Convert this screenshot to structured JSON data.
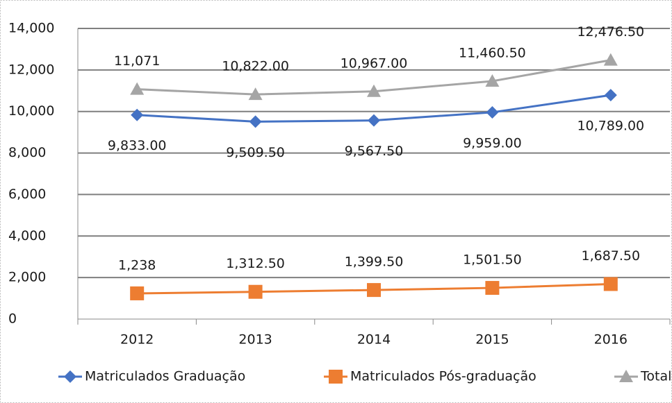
{
  "chart_data": {
    "type": "line",
    "categories": [
      "2012",
      "2013",
      "2014",
      "2015",
      "2016"
    ],
    "series": [
      {
        "name": "Matriculados Graduação",
        "color": "#4472c4",
        "marker": "diamond",
        "values": [
          9833,
          9509.5,
          9567.5,
          9959,
          10789
        ],
        "value_labels": [
          "9,833.00",
          "9,509.50",
          "9,567.50",
          "9,959.00",
          "10,789.00"
        ],
        "label_position": "below"
      },
      {
        "name": "Matriculados Pós-graduação",
        "color": "#ed7d31",
        "marker": "square",
        "values": [
          1238,
          1312.5,
          1399.5,
          1501.5,
          1687.5
        ],
        "value_labels": [
          "1,238",
          "1,312.50",
          "1,399.50",
          "1,501.50",
          "1,687.50"
        ],
        "label_position": "above"
      },
      {
        "name": "Total",
        "color": "#a5a5a5",
        "marker": "triangle",
        "values": [
          11071,
          10822,
          10967,
          11460.5,
          12476.5
        ],
        "value_labels": [
          "11,071",
          "10,822.00",
          "10,967.00",
          "11,460.50",
          "12,476.50"
        ],
        "label_position": "above"
      }
    ],
    "ylim": [
      0,
      14000
    ],
    "yticks": [
      0,
      {
        "value": 2000,
        "label": "2,000"
      },
      {
        "value": 4000,
        "label": "4,000"
      },
      {
        "value": 6000,
        "label": "6,000"
      },
      {
        "value": 8000,
        "label": "8,000"
      },
      {
        "value": 10000,
        "label": "10,000"
      },
      {
        "value": 12000,
        "label": "12,000"
      },
      {
        "value": 14000,
        "label": "14,000"
      }
    ],
    "grid": true,
    "legend": "bottom"
  }
}
